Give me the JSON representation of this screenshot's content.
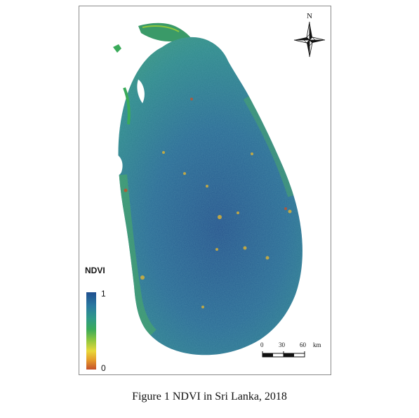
{
  "map": {
    "north_label": "N",
    "legend": {
      "title": "NDVI",
      "max_label": "1",
      "min_label": "0",
      "colors": [
        "#1f4f8f",
        "#2a7aa0",
        "#2f9a88",
        "#3aaa5a",
        "#8ec63e",
        "#e8d83a",
        "#e59a2a",
        "#c4502a"
      ]
    },
    "scale_bar": {
      "tick_labels": [
        "0",
        "30",
        "60"
      ],
      "unit": "km"
    },
    "land_colors": {
      "base": "#2a6f95",
      "mid": "#2f8a8a",
      "high_veg": "#2e4f8a",
      "coast": "#4aa86a",
      "dry": "#d6b13a"
    }
  },
  "caption": "Figure 1  NDVI in Sri Lanka, 2018"
}
